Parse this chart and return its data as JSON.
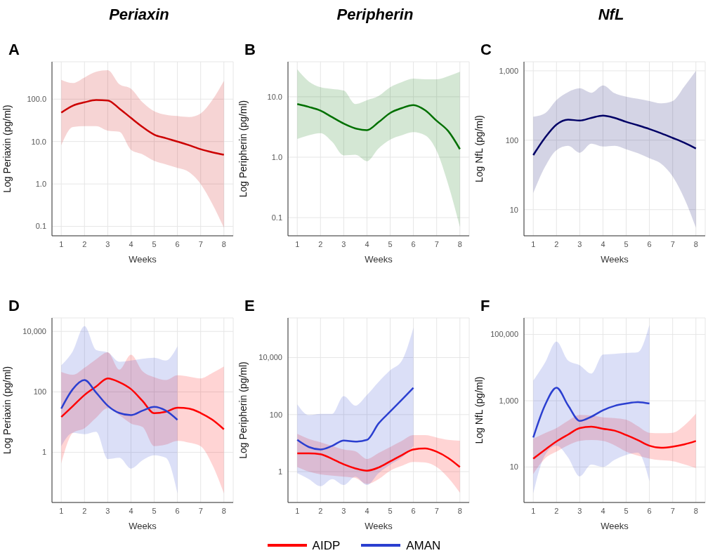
{
  "chart_data": [
    {
      "type": "line",
      "title": "Periaxin",
      "annotations": [
        "A"
      ],
      "xlabel": "Weeks",
      "ylabel": "Log Periaxin (pg/ml)",
      "log": "y",
      "grid": true,
      "xlim": [
        0.6,
        8.4
      ],
      "xticks": [
        1,
        2,
        3,
        4,
        5,
        6,
        7,
        8
      ],
      "ylim": [
        0.06,
        760
      ],
      "yticks": [
        0.1,
        {
          "value": 1,
          "label": "1.0"
        },
        {
          "value": 10,
          "label": "10.0"
        },
        {
          "value": 100,
          "label": "100.0"
        }
      ],
      "series": [
        {
          "color": "#cc0000",
          "x": [
            1,
            1.5,
            2,
            2.5,
            3,
            3.5,
            4,
            4.5,
            5,
            5.5,
            6,
            6.5,
            7,
            7.5,
            8
          ],
          "values": [
            48,
            70,
            84,
            95,
            93,
            60,
            36,
            22,
            14.6,
            12,
            10,
            8.2,
            6.6,
            5.6,
            4.9
          ],
          "lower": [
            8.2,
            22,
            23,
            23,
            18,
            17,
            6.4,
            5,
            3.5,
            2.9,
            2.4,
            1.9,
            1.0,
            0.34,
            0.093
          ],
          "upper": [
            286,
            240,
            324,
            440,
            480,
            224,
            176,
            84,
            52,
            43,
            40,
            38,
            46,
            95,
            270
          ]
        }
      ]
    },
    {
      "type": "line",
      "title": "Peripherin",
      "annotations": [
        "B"
      ],
      "xlabel": "Weeks",
      "ylabel": "Log Peripherin (pg/ml)",
      "log": "y",
      "grid": true,
      "xlim": [
        0.6,
        8.4
      ],
      "xticks": [
        1,
        2,
        3,
        4,
        5,
        6,
        7,
        8
      ],
      "ylim": [
        0.05,
        38
      ],
      "yticks": [
        0.1,
        {
          "value": 1,
          "label": "1.0"
        },
        {
          "value": 10,
          "label": "10.0"
        }
      ],
      "series": [
        {
          "color": "#007000",
          "x": [
            1,
            1.5,
            2,
            2.5,
            3,
            3.5,
            4,
            4.5,
            5,
            5.5,
            6,
            6.5,
            7,
            7.5,
            8
          ],
          "values": [
            7.6,
            6.8,
            5.9,
            4.6,
            3.6,
            3.0,
            2.8,
            3.8,
            5.4,
            6.5,
            7.3,
            6.0,
            4.0,
            2.7,
            1.36
          ],
          "lower": [
            2.0,
            2.3,
            2.5,
            1.8,
            1.07,
            1.1,
            0.86,
            1.4,
            1.95,
            2.3,
            2.6,
            2.3,
            1.27,
            0.35,
            0.07
          ],
          "upper": [
            28.5,
            17.9,
            14.4,
            13.5,
            12.7,
            7.6,
            8.8,
            10.3,
            14.4,
            17.5,
            20,
            19.5,
            19.5,
            22,
            26
          ]
        }
      ]
    },
    {
      "type": "line",
      "title": "NfL",
      "annotations": [
        "C"
      ],
      "xlabel": "Weeks",
      "ylabel": "Log NfL (pg/ml)",
      "log": "y",
      "grid": true,
      "xlim": [
        0.6,
        8.4
      ],
      "xticks": [
        1,
        2,
        3,
        4,
        5,
        6,
        7,
        8
      ],
      "ylim": [
        4.2,
        1350
      ],
      "yticks": [
        10,
        100,
        {
          "value": 1000,
          "label": "1,000"
        }
      ],
      "series": [
        {
          "color": "#000066",
          "x": [
            1,
            1.5,
            2,
            2.5,
            3,
            3.5,
            4,
            4.5,
            5,
            5.5,
            6,
            6.5,
            7,
            7.5,
            8
          ],
          "values": [
            61,
            108,
            168,
            198,
            192,
            210,
            226,
            210,
            184,
            164,
            145,
            126,
            108,
            92,
            76
          ],
          "lower": [
            17.4,
            41,
            72,
            83,
            66,
            89,
            81,
            83,
            74,
            65,
            55,
            46,
            30,
            14.5,
            5.5
          ],
          "upper": [
            218,
            244,
            380,
            494,
            560,
            483,
            617,
            476,
            425,
            395,
            367,
            340,
            367,
            595,
            1000
          ]
        }
      ]
    },
    {
      "type": "line",
      "annotations": [
        "D"
      ],
      "xlabel": "Weeks",
      "ylabel": "Log Periaxin (pg/ml)",
      "log": "y",
      "grid": true,
      "xlim": [
        0.6,
        8.4
      ],
      "xticks": [
        1,
        2,
        3,
        4,
        5,
        6,
        7,
        8
      ],
      "ylim": [
        0.022,
        28000
      ],
      "yticks": [
        1,
        100,
        {
          "value": 10000,
          "label": "10,000"
        }
      ],
      "series": [
        {
          "color": "#ff0000",
          "x": [
            1,
            1.5,
            2,
            2.5,
            3,
            3.5,
            4,
            4.5,
            5,
            5.5,
            6,
            6.5,
            7,
            7.5,
            8
          ],
          "values": [
            14.8,
            34,
            79,
            150,
            280,
            210,
            124,
            50,
            19.7,
            22,
            30,
            28,
            20,
            12,
            5.8
          ],
          "lower": [
            0.42,
            4.4,
            6.3,
            14,
            29,
            17,
            9,
            6.9,
            1.6,
            1.8,
            2.4,
            2.1,
            1.6,
            0.39,
            0.044
          ],
          "upper": [
            455,
            367,
            630,
            1200,
            2040,
            545,
            1700,
            480,
            306,
            246,
            354,
            320,
            280,
            420,
            690
          ]
        },
        {
          "color": "#2b3fd0",
          "x": [
            1,
            1.5,
            2,
            2.5,
            3,
            3.5,
            4,
            4.5,
            5,
            5.5,
            6
          ],
          "values": [
            28,
            124,
            246,
            95,
            35,
            20,
            17,
            24,
            32,
            24,
            11.9
          ],
          "lower": [
            1.6,
            4.4,
            4.0,
            4.8,
            0.6,
            0.66,
            0.29,
            0.55,
            0.8,
            0.66,
            0.044
          ],
          "upper": [
            755,
            2240,
            14900,
            2440,
            2040,
            990,
            1090,
            1250,
            1350,
            1090,
            3200
          ]
        }
      ]
    },
    {
      "type": "line",
      "annotations": [
        "E"
      ],
      "xlabel": "Weeks",
      "ylabel": "Log Peripherin (pg/ml)",
      "log": "y",
      "grid": true,
      "legend": "bottom",
      "xlim": [
        0.6,
        8.4
      ],
      "xticks": [
        1,
        2,
        3,
        4,
        5,
        6,
        7,
        8
      ],
      "ylim": [
        0.083,
        246000
      ],
      "yticks": [
        1,
        100,
        {
          "value": 10000,
          "label": "10,000"
        }
      ],
      "series": [
        {
          "name": "AIDP",
          "color": "#ff0000",
          "x": [
            1,
            1.5,
            2,
            2.5,
            3,
            3.5,
            4,
            4.5,
            5,
            5.5,
            6,
            6.5,
            7,
            7.5,
            8
          ],
          "values": [
            4.4,
            4.4,
            4.1,
            2.8,
            1.8,
            1.3,
            1.08,
            1.4,
            2.3,
            3.8,
            6.0,
            6.5,
            5.0,
            3.0,
            1.45
          ],
          "lower": [
            1.45,
            1.0,
            0.8,
            0.72,
            0.67,
            0.6,
            0.37,
            0.55,
            1.08,
            1.6,
            2.2,
            2.1,
            1.45,
            0.6,
            0.18
          ],
          "upper": [
            21,
            14,
            10.7,
            8,
            6.0,
            5.2,
            2.8,
            4.5,
            7.3,
            12,
            19,
            19,
            15.7,
            13,
            12.2
          ]
        },
        {
          "name": "AMAN",
          "color": "#2b3fd0",
          "x": [
            1,
            1.5,
            2,
            2.5,
            3,
            3.5,
            4,
            4.5,
            5,
            5.5,
            6
          ],
          "values": [
            13,
            7.3,
            6.0,
            8.0,
            12.4,
            11.3,
            13,
            49,
            128,
            333,
            870
          ],
          "lower": [
            0.89,
            0.55,
            0.31,
            0.55,
            0.34,
            0.67,
            0.34,
            0.89,
            1.75,
            3.1,
            8.0
          ],
          "upper": [
            228,
            96,
            106,
            106,
            444,
            207,
            488,
            1400,
            3600,
            7800,
            112000
          ]
        }
      ]
    },
    {
      "type": "line",
      "annotations": [
        "F"
      ],
      "xlabel": "Weeks",
      "ylabel": "Log NfL (pg/ml)",
      "log": "y",
      "grid": true,
      "xlim": [
        0.6,
        8.4
      ],
      "xticks": [
        1,
        2,
        3,
        4,
        5,
        6,
        7,
        8
      ],
      "ylim": [
        0.85,
        316000
      ],
      "yticks": [
        10,
        {
          "value": 1000,
          "label": "1,000"
        },
        {
          "value": 100000,
          "label": "100,000"
        }
      ],
      "series": [
        {
          "color": "#ff0000",
          "x": [
            1,
            1.5,
            2,
            2.5,
            3,
            3.5,
            4,
            4.5,
            5,
            5.5,
            6,
            6.5,
            7,
            7.5,
            8
          ],
          "values": [
            17.8,
            33,
            59,
            95,
            150,
            165,
            143,
            125,
            92,
            65,
            44,
            38,
            41,
            48,
            61
          ],
          "lower": [
            6.1,
            18,
            29,
            45,
            61,
            65,
            61,
            45,
            29,
            22,
            18,
            16,
            15,
            12,
            9.3
          ],
          "upper": [
            72,
            105,
            150,
            250,
            373,
            360,
            316,
            300,
            268,
            170,
            108,
            105,
            108,
            180,
            405
          ]
        },
        {
          "color": "#2b3fd0",
          "x": [
            1,
            1.5,
            2,
            2.5,
            3,
            3.5,
            4,
            4.5,
            5,
            5.5,
            6
          ],
          "values": [
            78,
            720,
            2470,
            720,
            247,
            330,
            518,
            700,
            820,
            906,
            820
          ],
          "lower": [
            1.6,
            22.6,
            44,
            19.3,
            5.2,
            11.8,
            10,
            16.4,
            23,
            27,
            3.7
          ],
          "upper": [
            4050,
            13900,
            61000,
            16400,
            11800,
            6600,
            24600,
            26000,
            27600,
            29000,
            193000
          ]
        }
      ]
    }
  ]
}
